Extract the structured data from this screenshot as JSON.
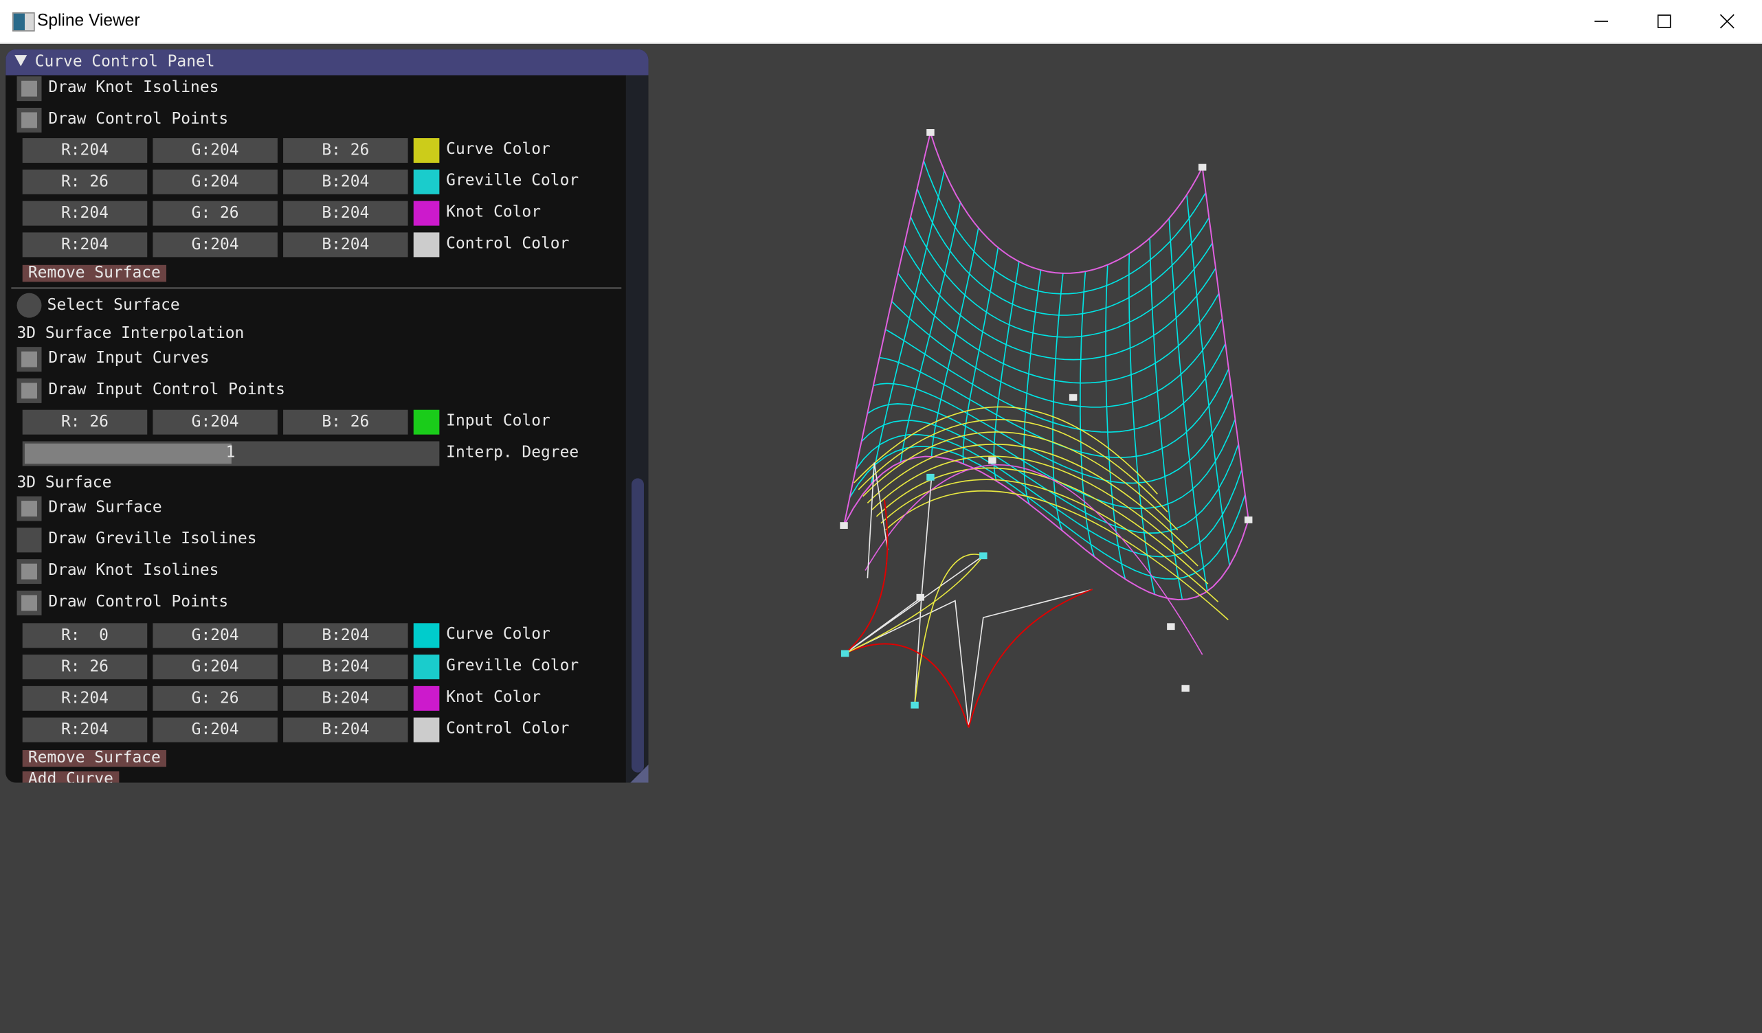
{
  "window": {
    "title": "Spline Viewer",
    "controls": [
      "minimize",
      "maximize",
      "close"
    ]
  },
  "panel": {
    "title": "Curve Control Panel",
    "collapse_icon": "triangle-down-icon",
    "items": [
      {
        "type": "checkbox",
        "label": "Draw Knot Isolines",
        "checked": true
      },
      {
        "type": "checkbox",
        "label": "Draw Control Points",
        "checked": true
      },
      {
        "type": "color",
        "r": "R:204",
        "g": "G:204",
        "b": "B: 26",
        "label": "Curve Color",
        "swatch": "#cccc1a"
      },
      {
        "type": "color",
        "r": "R: 26",
        "g": "G:204",
        "b": "B:204",
        "label": "Greville Color",
        "swatch": "#1acccc"
      },
      {
        "type": "color",
        "r": "R:204",
        "g": "G: 26",
        "b": "B:204",
        "label": "Knot Color",
        "swatch": "#cc1acc"
      },
      {
        "type": "color",
        "r": "R:204",
        "g": "G:204",
        "b": "B:204",
        "label": "Control Color",
        "swatch": "#cccccc"
      },
      {
        "type": "button",
        "label": "Remove Surface"
      },
      {
        "type": "separator"
      },
      {
        "type": "radio",
        "label": "Select Surface",
        "selected": false
      },
      {
        "type": "text",
        "label": "3D Surface Interpolation"
      },
      {
        "type": "checkbox",
        "label": "Draw Input Curves",
        "checked": true
      },
      {
        "type": "checkbox",
        "label": "Draw Input Control Points",
        "checked": true
      },
      {
        "type": "color",
        "r": "R: 26",
        "g": "G:204",
        "b": "B: 26",
        "label": "Input Color",
        "swatch": "#1acc1a"
      },
      {
        "type": "slider",
        "value": "1",
        "label": "Interp. Degree",
        "fill_fraction": 0.5
      },
      {
        "type": "text",
        "label": "3D Surface"
      },
      {
        "type": "checkbox",
        "label": "Draw Surface",
        "checked": true
      },
      {
        "type": "checkbox",
        "label": "Draw Greville Isolines",
        "checked": false
      },
      {
        "type": "checkbox",
        "label": "Draw Knot Isolines",
        "checked": true
      },
      {
        "type": "checkbox",
        "label": "Draw Control Points",
        "checked": true
      },
      {
        "type": "color",
        "r": "R:  0",
        "g": "G:204",
        "b": "B:204",
        "label": "Curve Color",
        "swatch": "#00cccc"
      },
      {
        "type": "color",
        "r": "R: 26",
        "g": "G:204",
        "b": "B:204",
        "label": "Greville Color",
        "swatch": "#1acccc"
      },
      {
        "type": "color",
        "r": "R:204",
        "g": "G: 26",
        "b": "B:204",
        "label": "Knot Color",
        "swatch": "#cc1acc"
      },
      {
        "type": "color",
        "r": "R:204",
        "g": "G:204",
        "b": "B:204",
        "label": "Control Color",
        "swatch": "#cccccc"
      },
      {
        "type": "button",
        "label": "Remove Surface"
      },
      {
        "type": "button",
        "label": "Add Curve"
      }
    ]
  },
  "colors": {
    "viewport_bg": "#3f3f3f",
    "panel_header": "#44447a",
    "button": "#6b4343",
    "surface_curve": "#00e5e5",
    "knot_isoline": "#e060e0",
    "yellow_curve": "#e8e840",
    "input_curve": "#e00000",
    "control_point": "#e8e8e8"
  }
}
